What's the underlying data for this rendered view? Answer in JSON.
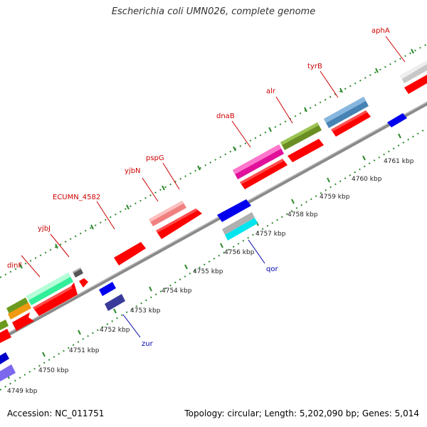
{
  "title": "Escherichia coli UMN026, complete genome",
  "footer": {
    "accession": "Accession: NC_011751",
    "summary": "Topology: circular; Length: 5,202,090 bp; Genes: 5,014"
  },
  "colors": {
    "forward_label": "#cc0000",
    "reverse_label": "#0000aa",
    "backbone": "#8a8a8a",
    "tick": "#2e8b2e"
  },
  "kbp_labels": [
    "4749 kbp",
    "4750 kbp",
    "4751 kbp",
    "4752 kbp",
    "4753 kbp",
    "4754 kbp",
    "4755 kbp",
    "4756 kbp",
    "4757 kbp",
    "4758 kbp",
    "4759 kbp",
    "4760 kbp",
    "4761 kbp"
  ],
  "gene_labels": {
    "forward": [
      "dinF",
      "yjbJ",
      "ECUMN_4582",
      "yjbN",
      "pspG",
      "dnaB",
      "alr",
      "tyrB",
      "aphA"
    ],
    "reverse": [
      "zur",
      "qor"
    ]
  }
}
